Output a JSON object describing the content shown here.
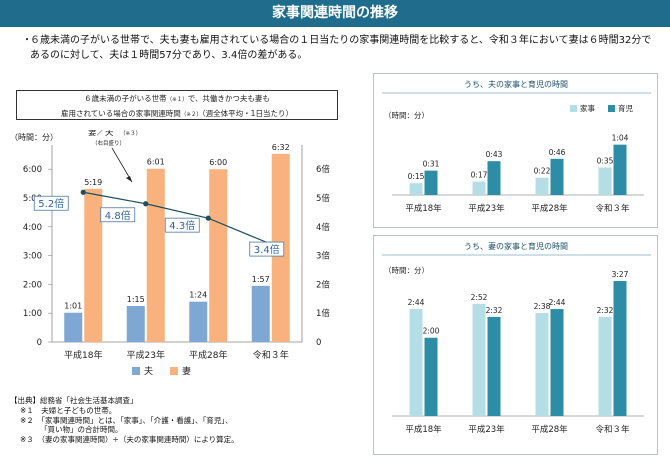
{
  "title": "家事関連時間の推移",
  "summary": {
    "bullet": "・",
    "text": "６歳未満の子がいる世帯で、夫も妻も雇用されている場合の１日当たりの家事関連時間を比較すると、令和３年において妻は６時間32分であるのに対して、夫は１時間57分であり、3.4倍の差がある。"
  },
  "main_desc": {
    "line1_a": "６歳未満の子がいる世帯",
    "line1_note": "（※１）",
    "line1_b": "で、共働きかつ夫も妻も",
    "line2_a": "雇用されている場合の家事関連時間",
    "line2_note": "（※２）",
    "line2_b": "（週全体平均・1日当たり）"
  },
  "y_unit": "（時間：分）",
  "ratio_label": "妻／夫",
  "ratio_note": "（※３）",
  "ratio_sub": "（右目盛り）",
  "source": {
    "line1": "【出典】総務省「社会生活基本調査」",
    "note1": "※１　夫婦と子どもの世帯。",
    "note2a": "※２　「家事関連時間」とは、「家事」、「介護・看護」、「育児」、",
    "note2b": "「買い物」の合計時間。",
    "note3": "※３　（妻の家事関連時間）÷（夫の家事関連時間）により算定。"
  },
  "colors": {
    "title_bg": "#1f6c8c",
    "husband": "#7ea7d4",
    "wife": "#f9b27d",
    "line": "#1f4e5f",
    "housework": "#b4dde6",
    "childcare": "#2d8da6"
  },
  "chart_data": [
    {
      "type": "bar",
      "title": "６歳未満の子がいる世帯で、共働きかつ夫も妻も雇用されている場合の家事関連時間（週全体平均・1日当たり）",
      "categories": [
        "平成18年",
        "平成23年",
        "平成28年",
        "令和３年"
      ],
      "series": [
        {
          "name": "夫",
          "values": [
            61,
            75,
            84,
            117
          ],
          "labels": [
            "1:01",
            "1:15",
            "1:24",
            "1:57"
          ]
        },
        {
          "name": "妻",
          "values": [
            319,
            361,
            360,
            392
          ],
          "labels": [
            "5:19",
            "6:01",
            "6:00",
            "6:32"
          ]
        }
      ],
      "line_series": {
        "name": "妻／夫",
        "axis": "right",
        "values": [
          5.2,
          4.8,
          4.3,
          3.4
        ],
        "labels": [
          "5.2倍",
          "4.8倍",
          "4.3倍",
          "3.4倍"
        ]
      },
      "ylabel": "（時間：分）",
      "y_ticks": [
        "0",
        "1:00",
        "2:00",
        "3:00",
        "4:00",
        "5:00",
        "6:00"
      ],
      "ylim": [
        0,
        400
      ],
      "y2_ticks": [
        "0",
        "1倍",
        "2倍",
        "3倍",
        "4倍",
        "5倍",
        "6倍"
      ],
      "y2lim": [
        0,
        6.6667
      ],
      "legend": [
        "夫",
        "妻"
      ]
    },
    {
      "type": "bar",
      "title": "うち、夫の家事と育児の時間",
      "ylabel": "（時間：分）",
      "categories": [
        "平成18年",
        "平成23年",
        "平成28年",
        "令和３年"
      ],
      "series": [
        {
          "name": "家事",
          "values": [
            15,
            17,
            22,
            35
          ],
          "labels": [
            "0:15",
            "0:17",
            "0:22",
            "0:35"
          ]
        },
        {
          "name": "育児",
          "values": [
            31,
            43,
            46,
            64
          ],
          "labels": [
            "0:31",
            "0:43",
            "0:46",
            "1:04"
          ]
        }
      ],
      "ylim": [
        0,
        75
      ],
      "legend": [
        "家事",
        "育児"
      ]
    },
    {
      "type": "bar",
      "title": "うち、妻の家事と育児の時間",
      "ylabel": "（時間：分）",
      "categories": [
        "平成18年",
        "平成23年",
        "平成28年",
        "令和３年"
      ],
      "series": [
        {
          "name": "家事",
          "values": [
            164,
            172,
            158,
            152
          ],
          "labels": [
            "2:44",
            "2:52",
            "2:38",
            "2:32"
          ]
        },
        {
          "name": "育児",
          "values": [
            120,
            152,
            164,
            207
          ],
          "labels": [
            "2:00",
            "2:32",
            "2:44",
            "3:27"
          ]
        }
      ],
      "ylim": [
        0,
        230
      ],
      "legend": [
        "家事",
        "育児"
      ]
    }
  ]
}
